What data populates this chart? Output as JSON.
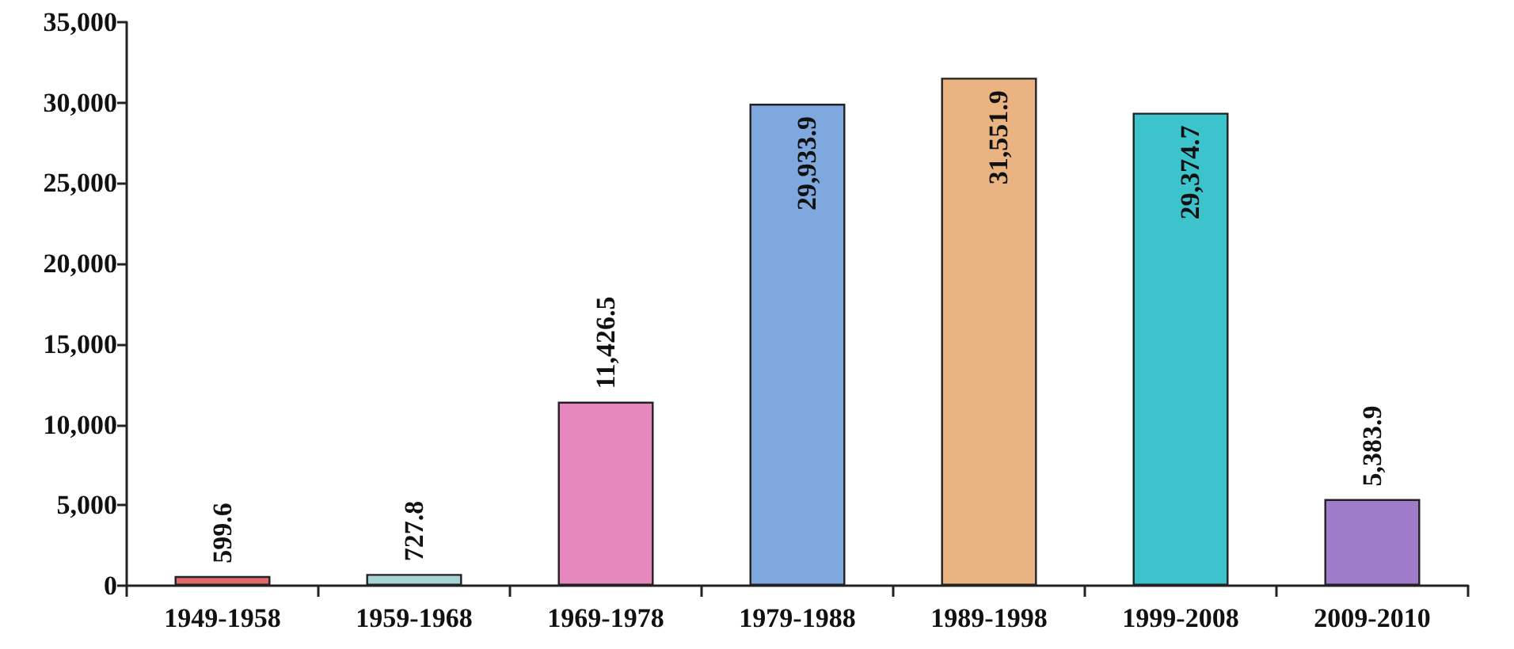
{
  "chart_data": {
    "type": "bar",
    "categories": [
      "1949-1958",
      "1959-1968",
      "1969-1978",
      "1979-1988",
      "1989-1998",
      "1999-2008",
      "2009-2010"
    ],
    "values": [
      599.6,
      727.8,
      11426.5,
      29933.9,
      31551.9,
      29374.7,
      5383.9
    ],
    "colors": [
      "#e06a6a",
      "#a6d4d6",
      "#e687bd",
      "#7fa9de",
      "#e9b482",
      "#3cc3cb",
      "#a07bc9"
    ],
    "value_labels": [
      "599.6",
      "727.8",
      "11,426.5",
      "29,933.9",
      "31,551.9",
      "29,374.7",
      "5,383.9"
    ],
    "ylim": [
      0,
      35000
    ],
    "yticks": [
      {
        "value": 0,
        "label": "0"
      },
      {
        "value": 5000,
        "label": "5,000"
      },
      {
        "value": 10000,
        "label": "10,000"
      },
      {
        "value": 15000,
        "label": "15,000"
      },
      {
        "value": 20000,
        "label": "20,000"
      },
      {
        "value": 25000,
        "label": "25,000"
      },
      {
        "value": 30000,
        "label": "30,000"
      },
      {
        "value": 35000,
        "label": "35,000"
      }
    ],
    "grid": false
  }
}
